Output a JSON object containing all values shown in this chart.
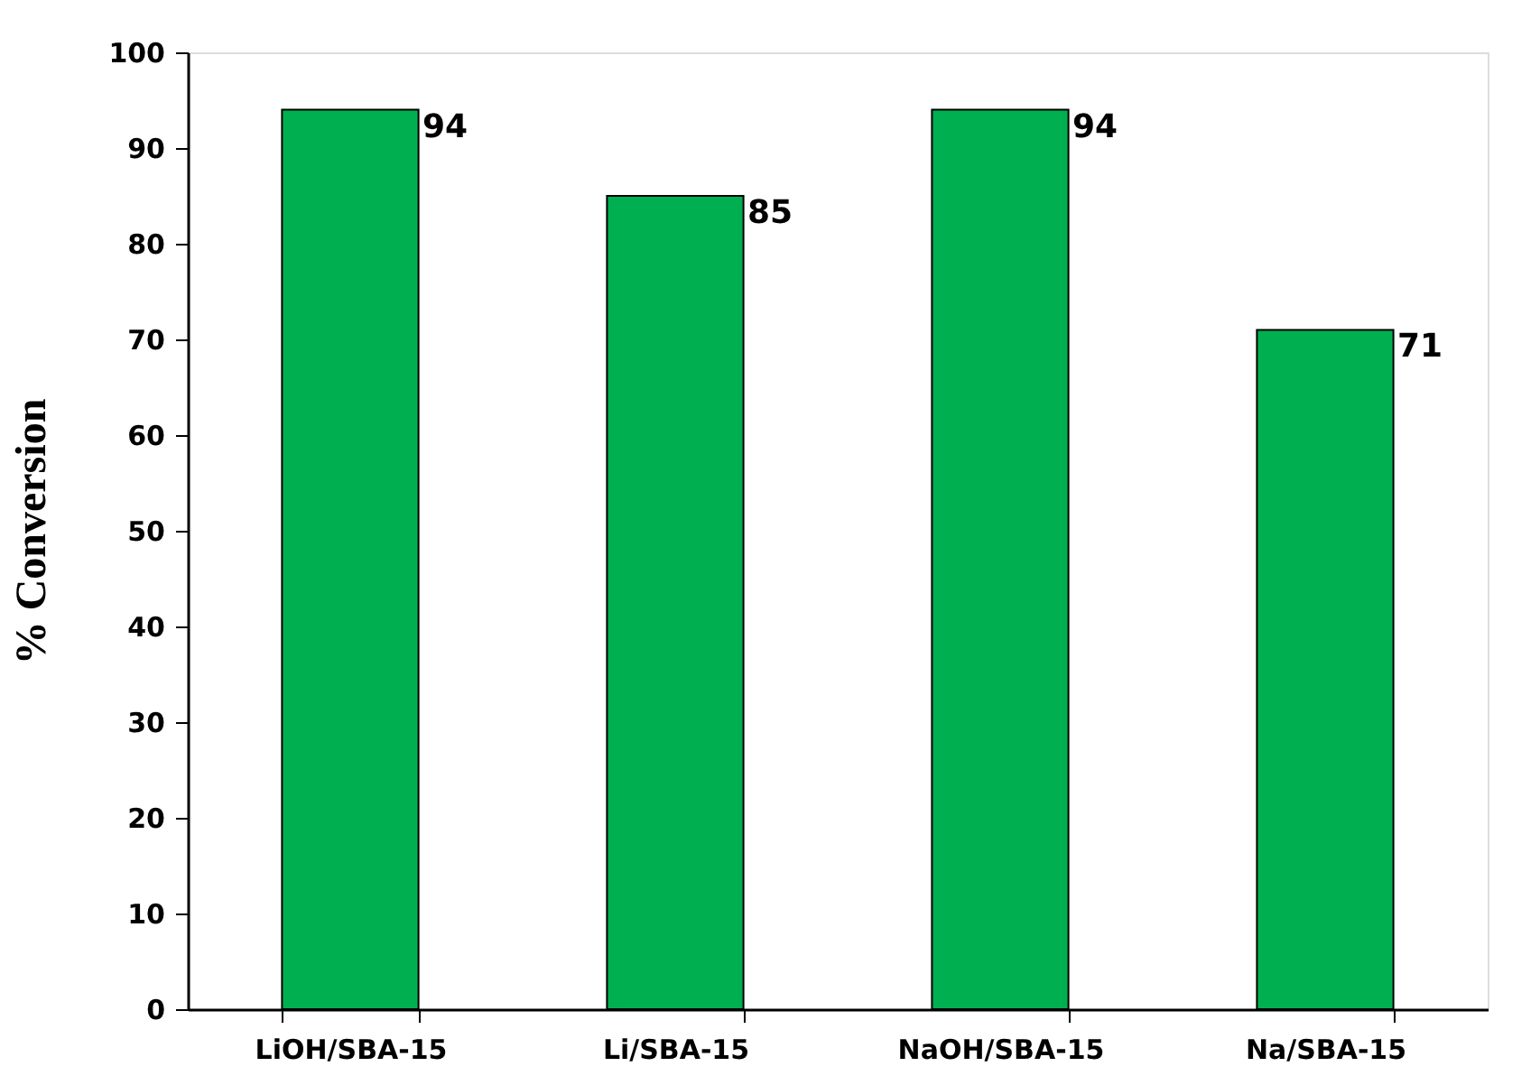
{
  "chart_data": {
    "type": "bar",
    "ylabel": "% Conversion",
    "categories": [
      "LiOH/SBA-15",
      "Li/SBA-15",
      "NaOH/SBA-15",
      "Na/SBA-15"
    ],
    "values": [
      94,
      85,
      94,
      71
    ],
    "color": "#00b050",
    "ylim": [
      0,
      100
    ],
    "yticks": [
      0,
      10,
      20,
      30,
      40,
      50,
      60,
      70,
      80,
      90,
      100
    ],
    "grid": false,
    "data_labels": true
  }
}
